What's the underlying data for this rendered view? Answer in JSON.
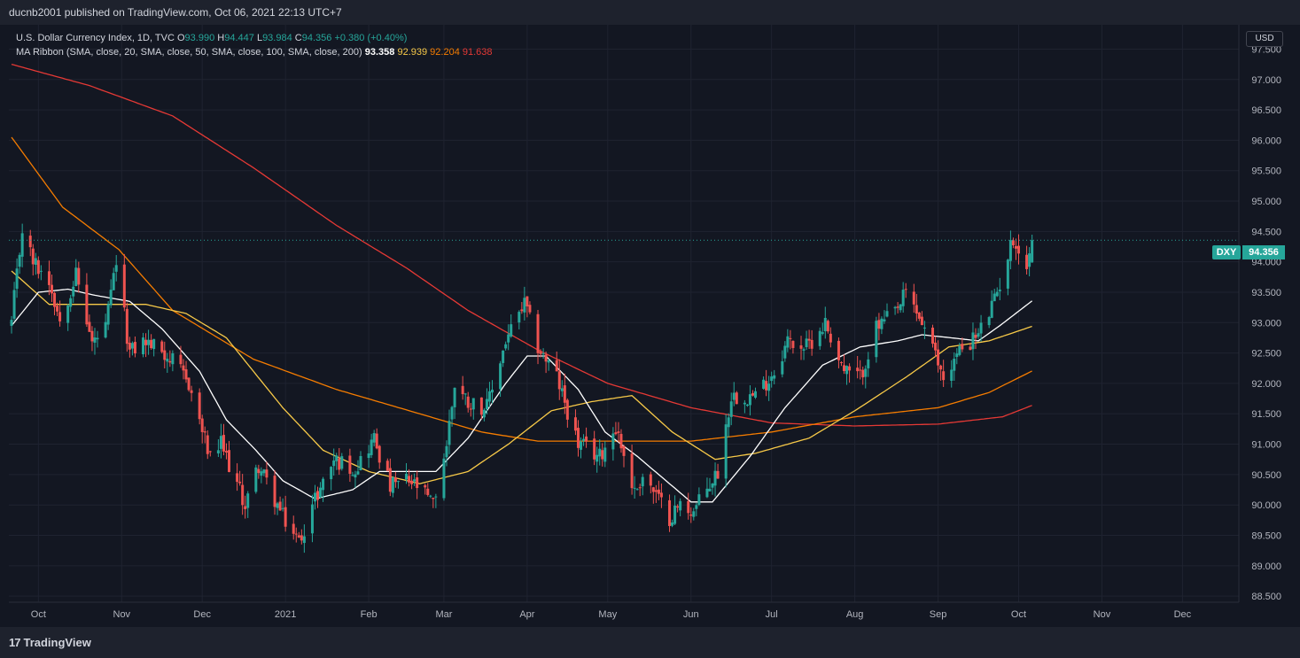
{
  "header": {
    "publisher_line": "ducnb2001 published on TradingView.com, Oct 06, 2021 22:13 UTC+7"
  },
  "legend": {
    "symbol": "U.S. Dollar Currency Index, 1D, TVC",
    "open_k": "O",
    "open": "93.990",
    "high_k": "H",
    "high": "94.447",
    "low_k": "L",
    "low": "93.984",
    "close_k": "C",
    "close": "94.356",
    "change": "+0.380 (+0.40%)",
    "ma_label": "MA Ribbon (SMA, close, 20, SMA, close, 50, SMA, close, 100, SMA, close, 200)",
    "ma20": "93.358",
    "ma50": "92.939",
    "ma100": "92.204",
    "ma200": "91.638"
  },
  "currency_button": "USD",
  "symbol_tag": "DXY",
  "last_price_tag": "94.356",
  "footer": {
    "brand": "TradingView",
    "brand_mark": "17"
  },
  "colors": {
    "up": "#26a69a",
    "down": "#ef5350",
    "ma20": "#ffffff",
    "ma50": "#f7c948",
    "ma100": "#f57c00",
    "ma200": "#e53935"
  },
  "chart_data": {
    "type": "candlestick",
    "title": "U.S. Dollar Currency Index, 1D, TVC",
    "ylim": [
      88.4,
      97.9
    ],
    "y_ticks": [
      "88.500",
      "89.000",
      "89.500",
      "90.000",
      "90.500",
      "91.000",
      "91.500",
      "92.000",
      "92.500",
      "93.000",
      "93.500",
      "94.000",
      "94.500",
      "95.000",
      "95.500",
      "96.000",
      "96.500",
      "97.000",
      "97.500"
    ],
    "x_range": [
      "2020-09-20",
      "2021-12-22"
    ],
    "x_ticks": [
      {
        "label": "Oct",
        "date": "2020-10-01"
      },
      {
        "label": "Nov",
        "date": "2020-11-01"
      },
      {
        "label": "Dec",
        "date": "2020-12-01"
      },
      {
        "label": "2021",
        "date": "2021-01-01"
      },
      {
        "label": "Feb",
        "date": "2021-02-01"
      },
      {
        "label": "Mar",
        "date": "2021-03-01"
      },
      {
        "label": "Apr",
        "date": "2021-04-01"
      },
      {
        "label": "May",
        "date": "2021-05-01"
      },
      {
        "label": "Jun",
        "date": "2021-06-01"
      },
      {
        "label": "Jul",
        "date": "2021-07-01"
      },
      {
        "label": "Aug",
        "date": "2021-08-01"
      },
      {
        "label": "Sep",
        "date": "2021-09-01"
      },
      {
        "label": "Oct",
        "date": "2021-10-01"
      },
      {
        "label": "Nov",
        "date": "2021-11-01"
      },
      {
        "label": "Dec",
        "date": "2021-12-01"
      }
    ],
    "last_close": 94.356,
    "ma_labels": [
      "20",
      "50",
      "100",
      "200"
    ],
    "close_anchors": [
      [
        "2020-09-21",
        93.0
      ],
      [
        "2020-09-25",
        94.55
      ],
      [
        "2020-09-29",
        94.0
      ],
      [
        "2020-10-05",
        93.7
      ],
      [
        "2020-10-09",
        93.05
      ],
      [
        "2020-10-15",
        93.8
      ],
      [
        "2020-10-21",
        92.65
      ],
      [
        "2020-10-26",
        92.9
      ],
      [
        "2020-10-30",
        94.0
      ],
      [
        "2020-11-04",
        92.5
      ],
      [
        "2020-11-09",
        92.7
      ],
      [
        "2020-11-16",
        92.55
      ],
      [
        "2020-11-20",
        92.35
      ],
      [
        "2020-11-26",
        92.0
      ],
      [
        "2020-12-04",
        90.75
      ],
      [
        "2020-12-08",
        91.0
      ],
      [
        "2020-12-17",
        90.0
      ],
      [
        "2020-12-22",
        90.65
      ],
      [
        "2020-12-31",
        89.8
      ],
      [
        "2021-01-06",
        89.4
      ],
      [
        "2021-01-12",
        90.1
      ],
      [
        "2021-01-19",
        90.75
      ],
      [
        "2021-01-27",
        90.6
      ],
      [
        "2021-02-03",
        91.1
      ],
      [
        "2021-02-09",
        90.3
      ],
      [
        "2021-02-15",
        90.4
      ],
      [
        "2021-02-19",
        90.3
      ],
      [
        "2021-02-25",
        90.0
      ],
      [
        "2021-03-02",
        91.0
      ],
      [
        "2021-03-05",
        92.0
      ],
      [
        "2021-03-10",
        91.7
      ],
      [
        "2021-03-17",
        91.6
      ],
      [
        "2021-03-24",
        92.7
      ],
      [
        "2021-03-31",
        93.3
      ],
      [
        "2021-04-05",
        92.6
      ],
      [
        "2021-04-12",
        92.1
      ],
      [
        "2021-04-20",
        91.0
      ],
      [
        "2021-04-28",
        90.8
      ],
      [
        "2021-05-04",
        91.3
      ],
      [
        "2021-05-11",
        90.2
      ],
      [
        "2021-05-14",
        90.5
      ],
      [
        "2021-05-24",
        89.8
      ],
      [
        "2021-05-28",
        90.0
      ],
      [
        "2021-06-02",
        89.9
      ],
      [
        "2021-06-11",
        90.55
      ],
      [
        "2021-06-16",
        91.8
      ],
      [
        "2021-06-21",
        91.8
      ],
      [
        "2021-06-25",
        91.8
      ],
      [
        "2021-07-02",
        92.2
      ],
      [
        "2021-07-07",
        92.7
      ],
      [
        "2021-07-14",
        92.6
      ],
      [
        "2021-07-21",
        93.0
      ],
      [
        "2021-07-28",
        92.2
      ],
      [
        "2021-08-03",
        92.1
      ],
      [
        "2021-08-09",
        92.9
      ],
      [
        "2021-08-17",
        93.2
      ],
      [
        "2021-08-20",
        93.5
      ],
      [
        "2021-08-26",
        93.0
      ],
      [
        "2021-09-03",
        92.1
      ],
      [
        "2021-09-10",
        92.6
      ],
      [
        "2021-09-16",
        92.8
      ],
      [
        "2021-09-22",
        93.35
      ],
      [
        "2021-09-29",
        94.4
      ],
      [
        "2021-10-04",
        93.9
      ],
      [
        "2021-10-06",
        94.356
      ]
    ],
    "ma_anchors": {
      "ma20": [
        [
          "2020-09-21",
          92.95
        ],
        [
          "2020-10-01",
          93.5
        ],
        [
          "2020-10-12",
          93.55
        ],
        [
          "2020-10-22",
          93.45
        ],
        [
          "2020-11-04",
          93.35
        ],
        [
          "2020-11-16",
          92.9
        ],
        [
          "2020-11-30",
          92.2
        ],
        [
          "2020-12-10",
          91.4
        ],
        [
          "2020-12-21",
          90.9
        ],
        [
          "2020-12-31",
          90.4
        ],
        [
          "2021-01-12",
          90.1
        ],
        [
          "2021-01-26",
          90.25
        ],
        [
          "2021-02-05",
          90.55
        ],
        [
          "2021-02-16",
          90.55
        ],
        [
          "2021-02-26",
          90.55
        ],
        [
          "2021-03-10",
          91.1
        ],
        [
          "2021-03-24",
          92.0
        ],
        [
          "2021-04-01",
          92.45
        ],
        [
          "2021-04-08",
          92.45
        ],
        [
          "2021-04-20",
          91.9
        ],
        [
          "2021-04-30",
          91.2
        ],
        [
          "2021-05-12",
          90.8
        ],
        [
          "2021-05-24",
          90.35
        ],
        [
          "2021-06-01",
          90.05
        ],
        [
          "2021-06-09",
          90.05
        ],
        [
          "2021-06-23",
          90.8
        ],
        [
          "2021-07-06",
          91.6
        ],
        [
          "2021-07-20",
          92.3
        ],
        [
          "2021-08-03",
          92.6
        ],
        [
          "2021-08-17",
          92.7
        ],
        [
          "2021-08-26",
          92.8
        ],
        [
          "2021-09-06",
          92.75
        ],
        [
          "2021-09-16",
          92.7
        ],
        [
          "2021-09-24",
          92.95
        ],
        [
          "2021-10-06",
          93.358
        ]
      ],
      "ma50": [
        [
          "2020-09-21",
          93.85
        ],
        [
          "2020-10-05",
          93.3
        ],
        [
          "2020-10-20",
          93.3
        ],
        [
          "2020-11-10",
          93.3
        ],
        [
          "2020-11-25",
          93.15
        ],
        [
          "2020-12-10",
          92.75
        ],
        [
          "2020-12-31",
          91.6
        ],
        [
          "2021-01-15",
          90.9
        ],
        [
          "2021-02-01",
          90.55
        ],
        [
          "2021-02-20",
          90.35
        ],
        [
          "2021-03-10",
          90.55
        ],
        [
          "2021-03-25",
          91.0
        ],
        [
          "2021-04-10",
          91.55
        ],
        [
          "2021-04-25",
          91.7
        ],
        [
          "2021-05-10",
          91.8
        ],
        [
          "2021-05-25",
          91.2
        ],
        [
          "2021-06-10",
          90.75
        ],
        [
          "2021-06-25",
          90.85
        ],
        [
          "2021-07-15",
          91.1
        ],
        [
          "2021-08-01",
          91.55
        ],
        [
          "2021-08-20",
          92.1
        ],
        [
          "2021-09-05",
          92.6
        ],
        [
          "2021-09-20",
          92.7
        ],
        [
          "2021-10-06",
          92.939
        ]
      ],
      "ma100": [
        [
          "2020-09-21",
          96.05
        ],
        [
          "2020-10-10",
          94.9
        ],
        [
          "2020-10-31",
          94.2
        ],
        [
          "2020-11-20",
          93.2
        ],
        [
          "2020-12-20",
          92.4
        ],
        [
          "2021-01-20",
          91.9
        ],
        [
          "2021-02-20",
          91.5
        ],
        [
          "2021-03-15",
          91.2
        ],
        [
          "2021-04-05",
          91.05
        ],
        [
          "2021-05-01",
          91.05
        ],
        [
          "2021-06-01",
          91.05
        ],
        [
          "2021-07-01",
          91.2
        ],
        [
          "2021-08-01",
          91.45
        ],
        [
          "2021-09-01",
          91.6
        ],
        [
          "2021-09-20",
          91.85
        ],
        [
          "2021-10-06",
          92.204
        ]
      ],
      "ma200": [
        [
          "2020-09-21",
          97.25
        ],
        [
          "2020-10-20",
          96.9
        ],
        [
          "2020-11-20",
          96.4
        ],
        [
          "2020-12-20",
          95.55
        ],
        [
          "2021-01-20",
          94.6
        ],
        [
          "2021-02-15",
          93.9
        ],
        [
          "2021-03-10",
          93.2
        ],
        [
          "2021-04-05",
          92.55
        ],
        [
          "2021-05-01",
          92.0
        ],
        [
          "2021-06-01",
          91.6
        ],
        [
          "2021-07-01",
          91.35
        ],
        [
          "2021-08-01",
          91.3
        ],
        [
          "2021-09-01",
          91.33
        ],
        [
          "2021-09-25",
          91.45
        ],
        [
          "2021-10-06",
          91.638
        ]
      ]
    }
  }
}
